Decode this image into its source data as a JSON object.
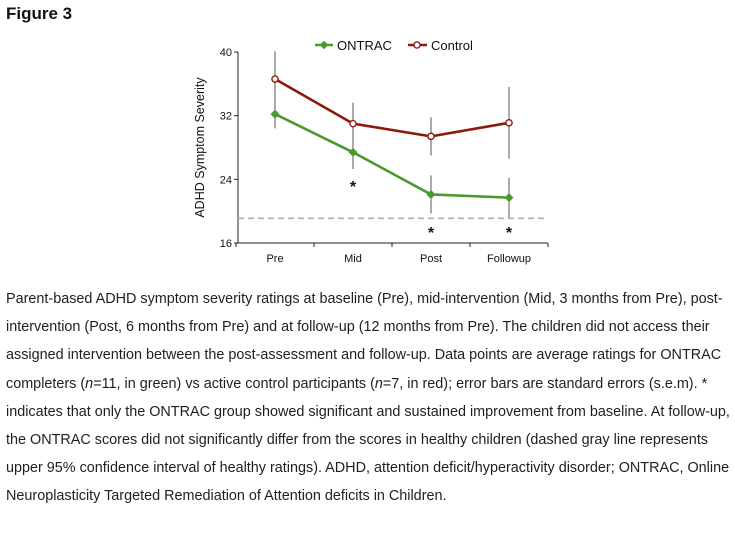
{
  "figure_heading": "Figure 3",
  "chart_data": {
    "type": "line",
    "title": "",
    "xlabel": "",
    "ylabel": "ADHD Symptom Severity",
    "categories": [
      "Pre",
      "Mid",
      "Post",
      "Followup"
    ],
    "ylim": [
      16,
      40
    ],
    "yticks": [
      16,
      24,
      32,
      40
    ],
    "grid": false,
    "legend_position": "top",
    "series": [
      {
        "name": "ONTRAC",
        "color": "#4a9a2b",
        "marker": "diamond",
        "values": [
          32.2,
          27.4,
          22.1,
          21.7
        ],
        "errors": [
          1.8,
          2.1,
          2.4,
          2.5
        ]
      },
      {
        "name": "Control",
        "color": "#8b1a0a",
        "marker": "open-circle",
        "values": [
          36.6,
          31.0,
          29.4,
          31.1
        ],
        "errors": [
          3.5,
          2.6,
          2.4,
          4.5
        ]
      }
    ],
    "reference_line": {
      "value": 19.1,
      "style": "dashed",
      "color": "#b0b0b0"
    },
    "significance_markers": [
      {
        "category": "Mid",
        "label": "*"
      },
      {
        "category": "Post",
        "label": "*"
      },
      {
        "category": "Followup",
        "label": "*"
      }
    ]
  },
  "caption": {
    "p1": "Parent-based ADHD symptom severity ratings at baseline (Pre), mid-intervention (Mid, 3 months from Pre), post-intervention (Post, 6 months from Pre) and at follow-up (12 months from Pre). The children did not access their assigned intervention between the post-assessment and follow-up. Data points are average ratings for ONTRAC completers (",
    "n_symbol_1": "n",
    "p2": "=11, in green) vs active control participants (",
    "n_symbol_2": "n",
    "p3": "=7, in red); error bars are standard errors (s.e.m). * indicates that only the ONTRAC group showed significant and sustained improvement from baseline. At follow-up, the ONTRAC scores did not significantly differ from the scores in healthy children (dashed gray line represents upper 95% confidence interval of healthy ratings). ADHD, attention deficit/hyperactivity disorder; ONTRAC, Online Neuroplasticity Targeted Remediation of Attention deficits in Children."
  }
}
